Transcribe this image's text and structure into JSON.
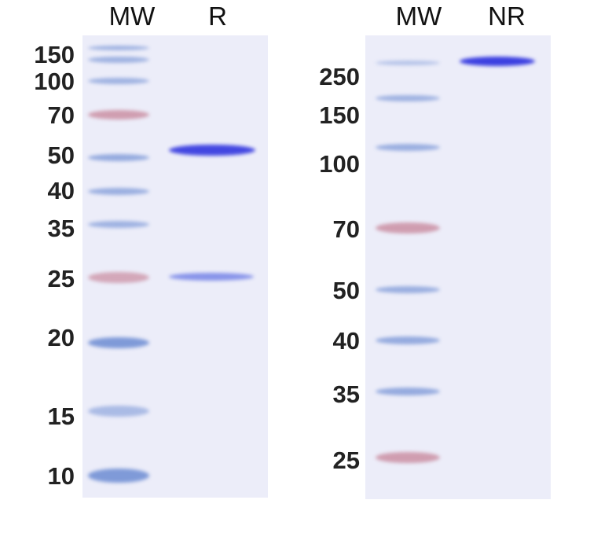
{
  "left_panel": {
    "lane_headers": [
      "MW",
      "R"
    ],
    "marker_labels": [
      "150",
      "100",
      "70",
      "50",
      "40",
      "35",
      "25",
      "20",
      "15",
      "10"
    ]
  },
  "right_panel": {
    "lane_headers": [
      "MW",
      "NR"
    ],
    "marker_labels": [
      "250",
      "150",
      "100",
      "70",
      "50",
      "40",
      "35",
      "25"
    ]
  },
  "colors": {
    "gel_background": "#ecedf9",
    "marker_blue": "#7f9ad8",
    "marker_red": "#c98a9e",
    "sample_band": "#3b3fe0"
  }
}
